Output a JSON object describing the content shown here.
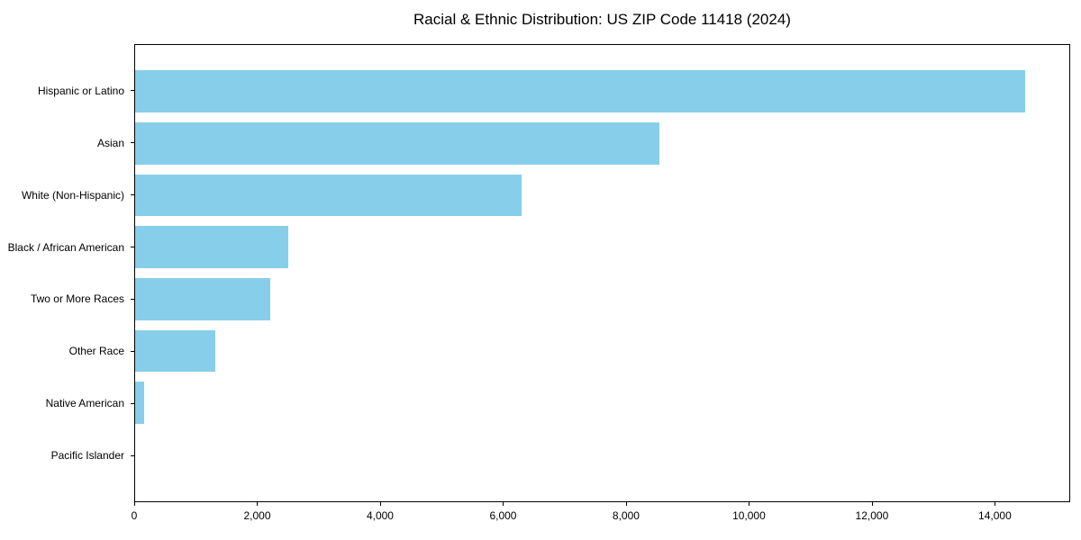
{
  "chart_data": {
    "type": "bar",
    "orientation": "horizontal",
    "title": "Racial & Ethnic Distribution: US ZIP Code 11418 (2024)",
    "categories": [
      "Hispanic or Latino",
      "Asian",
      "White (Non-Hispanic)",
      "Black / African American",
      "Two or More Races",
      "Other Race",
      "Native American",
      "Pacific Islander"
    ],
    "values": [
      14500,
      8550,
      6300,
      2500,
      2200,
      1300,
      150,
      0
    ],
    "xlabel": "",
    "ylabel": "",
    "xlim": [
      0,
      15225
    ],
    "xtick_values": [
      0,
      2000,
      4000,
      6000,
      8000,
      10000,
      12000,
      14000
    ],
    "xtick_labels": [
      "0",
      "2,000",
      "4,000",
      "6,000",
      "8,000",
      "10,000",
      "12,000",
      "14,000"
    ],
    "bar_color": "#87CEEB",
    "axis_color": "#000000",
    "text_color": "#000000",
    "background_color": "#ffffff",
    "grid": false,
    "legend": null
  }
}
